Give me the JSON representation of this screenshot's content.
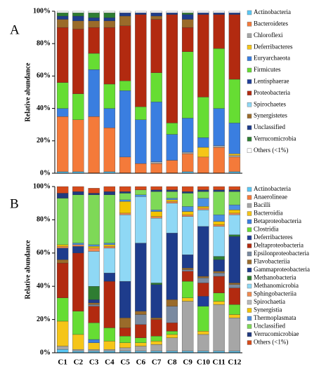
{
  "chart_data": [
    {
      "type": "stacked_bar",
      "label": "A",
      "ylabel": "Relative abundance",
      "categories": [
        null,
        null,
        null,
        null,
        null,
        null,
        null,
        null,
        null,
        null,
        null,
        null
      ],
      "ylim": [
        0,
        100
      ],
      "yticks": [
        {
          "value": 0,
          "label": "0%"
        },
        {
          "value": 20,
          "label": "20%"
        },
        {
          "value": 40,
          "label": "40%"
        },
        {
          "value": 60,
          "label": "60%"
        },
        {
          "value": 80,
          "label": "80%"
        },
        {
          "value": 100,
          "label": "100%"
        }
      ],
      "series": [
        {
          "name": "Actinobacteria",
          "color": "#5bc8f5",
          "values": [
            1,
            1,
            0,
            1,
            0,
            0,
            0,
            0,
            1,
            0,
            0,
            1
          ]
        },
        {
          "name": "Bacteroidetes",
          "color": "#f47a3a",
          "values": [
            34,
            32,
            35,
            27,
            10,
            6,
            6,
            8,
            11,
            10,
            16,
            9
          ]
        },
        {
          "name": "Chloroflexi",
          "color": "#a6a6a6",
          "values": [
            0,
            0,
            0,
            0,
            0,
            0,
            1,
            0,
            1,
            0,
            1,
            1
          ]
        },
        {
          "name": "Deferribacteres",
          "color": "#f5c518",
          "values": [
            0,
            0,
            0,
            0,
            0,
            0,
            0,
            0,
            0,
            6,
            0,
            1
          ]
        },
        {
          "name": "Euryarchaeota",
          "color": "#3a7ee0",
          "values": [
            5,
            0,
            29,
            12,
            41,
            27,
            37,
            16,
            21,
            6,
            23,
            19
          ]
        },
        {
          "name": "Firmicutes",
          "color": "#66dd33",
          "values": [
            16,
            16,
            10,
            15,
            6,
            8,
            18,
            7,
            41,
            25,
            37,
            27
          ]
        },
        {
          "name": "Lentisphaerae",
          "color": "#1f3f99",
          "values": [
            0,
            0,
            0,
            0,
            0,
            0,
            0,
            0,
            0,
            0,
            0,
            0
          ]
        },
        {
          "name": "Proteobacteria",
          "color": "#b22a10",
          "values": [
            34,
            40,
            16,
            35,
            34,
            57,
            33,
            67,
            15,
            51,
            21,
            40
          ]
        },
        {
          "name": "Spirochaetes",
          "color": "#8fd8f5",
          "values": [
            0,
            0,
            0,
            0,
            0,
            0,
            0,
            0,
            0,
            0,
            0,
            0
          ]
        },
        {
          "name": "Synergistetes",
          "color": "#9a6b2a",
          "values": [
            5,
            5,
            4,
            4,
            6,
            0,
            2,
            0,
            5,
            0,
            0,
            0
          ]
        },
        {
          "name": "Unclassified",
          "color": "#1e3c8c",
          "values": [
            2,
            3,
            2,
            2,
            2,
            1,
            2,
            1,
            3,
            1,
            1,
            1
          ]
        },
        {
          "name": "Verrucomicrobia",
          "color": "#2e7d32",
          "values": [
            2,
            2,
            3,
            3,
            0,
            0,
            0,
            0,
            1,
            0,
            0,
            0
          ]
        },
        {
          "name": "Others (<1%)",
          "color": "#ffffff",
          "values": [
            1,
            1,
            1,
            1,
            1,
            1,
            1,
            1,
            1,
            1,
            1,
            1
          ]
        }
      ]
    },
    {
      "type": "stacked_bar",
      "label": "B",
      "ylabel": "Relative abundance",
      "categories": [
        "C1",
        "C2",
        "C3",
        "C4",
        "C5",
        "C6",
        "C7",
        "C8",
        "C9",
        "C10",
        "C11",
        "C12"
      ],
      "ylim": [
        0,
        100
      ],
      "yticks": [
        {
          "value": 0,
          "label": "0%"
        },
        {
          "value": 20,
          "label": "20%"
        },
        {
          "value": 40,
          "label": "40%"
        },
        {
          "value": 60,
          "label": "60%"
        },
        {
          "value": 80,
          "label": "80%"
        },
        {
          "value": 100,
          "label": "100%"
        }
      ],
      "series": [
        {
          "name": "Actinobacteria",
          "color": "#5bc8f5",
          "values": [
            2,
            1,
            1,
            1,
            1,
            1,
            1,
            1,
            1,
            1,
            1,
            1
          ]
        },
        {
          "name": "Anaerolineae",
          "color": "#f47a3a",
          "values": [
            0,
            0,
            0,
            0,
            0,
            0,
            0,
            0,
            0,
            0,
            0,
            0
          ]
        },
        {
          "name": "Bacilli",
          "color": "#a6a6a6",
          "values": [
            2,
            1,
            1,
            1,
            2,
            3,
            4,
            8,
            30,
            10,
            28,
            20
          ]
        },
        {
          "name": "Bacteroidia",
          "color": "#f5c518",
          "values": [
            15,
            9,
            4,
            5,
            3,
            2,
            2,
            2,
            2,
            2,
            2,
            2
          ]
        },
        {
          "name": "Betaproteobacteria",
          "color": "#3a7ee0",
          "values": [
            0,
            0,
            2,
            0,
            0,
            0,
            0,
            0,
            0,
            0,
            0,
            0
          ]
        },
        {
          "name": "Clostridia",
          "color": "#66dd33",
          "values": [
            14,
            14,
            10,
            8,
            4,
            3,
            3,
            2,
            10,
            15,
            5,
            6
          ]
        },
        {
          "name": "Deferribacteres",
          "color": "#1f3f99",
          "values": [
            0,
            0,
            0,
            0,
            0,
            0,
            0,
            0,
            0,
            6,
            0,
            0
          ]
        },
        {
          "name": "Deltaproteobacteria",
          "color": "#b22a10",
          "values": [
            21,
            35,
            10,
            28,
            5,
            8,
            10,
            5,
            6,
            8,
            10,
            10
          ]
        },
        {
          "name": "Epsilonproteobacteria",
          "color": "#7a8aa0",
          "values": [
            0,
            0,
            1,
            0,
            0,
            6,
            0,
            10,
            1,
            3,
            2,
            2
          ]
        },
        {
          "name": "Flavobacteriia",
          "color": "#9a6b2a",
          "values": [
            2,
            0,
            1,
            0,
            6,
            2,
            1,
            4,
            1,
            1,
            1,
            1
          ]
        },
        {
          "name": "Gammaproteobacteria",
          "color": "#1e3c8c",
          "values": [
            7,
            4,
            2,
            5,
            22,
            41,
            20,
            40,
            8,
            30,
            7,
            28
          ]
        },
        {
          "name": "Methanobacteria",
          "color": "#2e7d32",
          "values": [
            0,
            0,
            8,
            0,
            0,
            0,
            1,
            0,
            0,
            0,
            2,
            1
          ]
        },
        {
          "name": "Methanomicrobia",
          "color": "#8fd8f5",
          "values": [
            0,
            0,
            21,
            15,
            40,
            28,
            39,
            18,
            23,
            10,
            18,
            12
          ]
        },
        {
          "name": "Sphingobacteriia",
          "color": "#f08a50",
          "values": [
            1,
            1,
            2,
            1,
            1,
            0,
            1,
            1,
            1,
            1,
            1,
            1
          ]
        },
        {
          "name": "Spirochaetia",
          "color": "#b8b8b8",
          "values": [
            0,
            0,
            0,
            0,
            0,
            0,
            0,
            0,
            0,
            0,
            0,
            0
          ]
        },
        {
          "name": "Synergistia",
          "color": "#f2c400",
          "values": [
            1,
            0,
            1,
            1,
            7,
            0,
            3,
            1,
            2,
            1,
            2,
            2
          ]
        },
        {
          "name": "Thermoplasmata",
          "color": "#4a90e2",
          "values": [
            0,
            1,
            1,
            1,
            1,
            1,
            1,
            1,
            3,
            5,
            4,
            3
          ]
        },
        {
          "name": "Unclassified",
          "color": "#7ed957",
          "values": [
            28,
            29,
            30,
            29,
            4,
            3,
            11,
            4,
            8,
            4,
            14,
            8
          ]
        },
        {
          "name": "Verrucomicrobiae",
          "color": "#203a80",
          "values": [
            3,
            2,
            1,
            2,
            1,
            0,
            1,
            1,
            1,
            1,
            1,
            1
          ]
        },
        {
          "name": "Others (<1%)",
          "color": "#d64a1a",
          "values": [
            4,
            3,
            3,
            3,
            3,
            2,
            2,
            2,
            3,
            2,
            2,
            2
          ]
        }
      ]
    }
  ]
}
